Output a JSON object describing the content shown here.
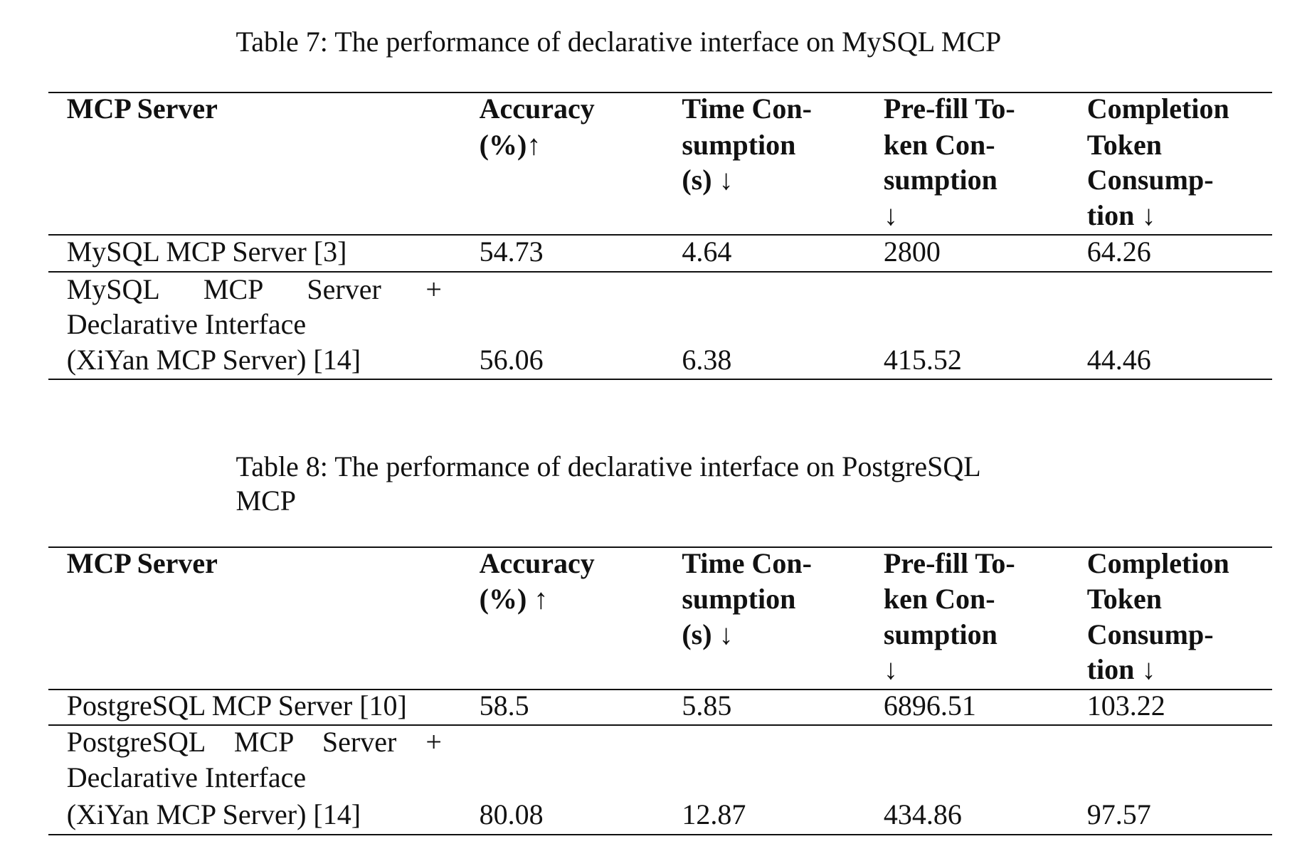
{
  "tables": [
    {
      "caption": [
        "Table 7:  The performance of declarative interface on MySQL MCP"
      ],
      "header": [
        [
          "MCP Server"
        ],
        [
          "Accuracy",
          "(%)↑"
        ],
        [
          "Time Con-",
          "sumption",
          "(s) ↓"
        ],
        [
          "Pre-fill To-",
          "ken Con-",
          "sumption",
          "↓"
        ],
        [
          "Completion",
          "Token",
          "Consump-",
          "tion ↓"
        ]
      ],
      "rows": [
        [
          [
            "MySQL MCP Server [3]"
          ],
          [
            "54.73"
          ],
          [
            "4.64"
          ],
          [
            "2800"
          ],
          [
            "64.26"
          ]
        ],
        [
          [
            "MySQL MCP Server +",
            "Declarative Interface",
            "(XiYan MCP Server) [14]"
          ],
          [
            "56.06"
          ],
          [
            "6.38"
          ],
          [
            "415.52"
          ],
          [
            "44.46"
          ]
        ]
      ]
    },
    {
      "caption": [
        "Table 8:  The performance of declarative interface on PostgreSQL",
        "MCP"
      ],
      "header": [
        [
          "MCP Server"
        ],
        [
          "Accuracy",
          "(%) ↑"
        ],
        [
          "Time Con-",
          "sumption",
          "(s) ↓"
        ],
        [
          "Pre-fill To-",
          "ken Con-",
          "sumption",
          "↓"
        ],
        [
          "Completion",
          "Token",
          "Consump-",
          "tion ↓"
        ]
      ],
      "rows": [
        [
          [
            "PostgreSQL MCP Server [10]"
          ],
          [
            "58.5"
          ],
          [
            "5.85"
          ],
          [
            "6896.51"
          ],
          [
            "103.22"
          ]
        ],
        [
          [
            "PostgreSQL MCP Server +",
            "Declarative Interface",
            "(XiYan MCP Server) [14]"
          ],
          [
            "80.08"
          ],
          [
            "12.87"
          ],
          [
            "434.86"
          ],
          [
            "97.57"
          ]
        ]
      ]
    }
  ]
}
